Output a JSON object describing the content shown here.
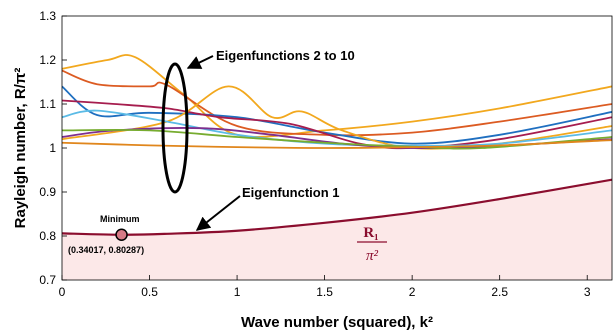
{
  "chart_data": {
    "type": "line",
    "xlabel": "Wave number (squared), k²",
    "ylabel": "Rayleigh number, R/π²",
    "xlim": [
      0,
      3.14159
    ],
    "ylim": [
      0.7,
      1.3
    ],
    "x_ticks": [
      0,
      0.5,
      1,
      1.5,
      2,
      2.5,
      3
    ],
    "y_ticks": [
      0.7,
      0.8,
      0.9,
      1,
      1.1,
      1.2,
      1.3
    ],
    "grid": false,
    "series": [
      {
        "name": "Eigenfunction 1",
        "color": "#8b0d2e",
        "x": [
          0,
          0.34017,
          0.6,
          1.0,
          1.5,
          2.0,
          2.5,
          3.14159
        ],
        "y": [
          0.806,
          0.80287,
          0.805,
          0.812,
          0.83,
          0.853,
          0.884,
          0.928
        ]
      },
      {
        "color": "#f2a81e",
        "x": [
          0,
          0.26,
          0.42,
          0.7,
          1.0,
          1.5,
          2.0,
          2.5,
          3.14159
        ],
        "y": [
          1.18,
          1.2,
          1.206,
          1.12,
          1.03,
          1.04,
          1.06,
          1.09,
          1.14
        ]
      },
      {
        "color": "#dc5b22",
        "x": [
          0,
          0.2,
          0.5,
          0.6,
          1.0,
          1.5,
          2.0,
          2.5,
          3.14159
        ],
        "y": [
          1.176,
          1.145,
          1.14,
          1.143,
          1.05,
          1.03,
          1.035,
          1.06,
          1.1
        ]
      },
      {
        "color": "#1f6fc0",
        "x": [
          0,
          0.2,
          0.5,
          1.0,
          1.5,
          2.0,
          2.5,
          3.14159
        ],
        "y": [
          1.14,
          1.075,
          1.08,
          1.07,
          1.035,
          1.01,
          1.03,
          1.082
        ]
      },
      {
        "color": "#a61d4e",
        "x": [
          0,
          0.3,
          0.6,
          0.9,
          1.3,
          1.7,
          2.0,
          2.5,
          3.14159
        ],
        "y": [
          1.108,
          1.1,
          1.09,
          1.07,
          1.055,
          1.01,
          1.0,
          1.02,
          1.07
        ]
      },
      {
        "color": "#f2a81e",
        "x": [
          0,
          0.6,
          0.95,
          1.2,
          1.37,
          1.6,
          2.0,
          2.5,
          3.14159
        ],
        "y": [
          1.02,
          1.06,
          1.14,
          1.07,
          1.083,
          1.04,
          1.0,
          1.01,
          1.05
        ]
      },
      {
        "color": "#5bbbe6",
        "x": [
          0,
          0.2,
          0.6,
          1.0,
          1.5,
          2.0,
          2.5,
          3.14159
        ],
        "y": [
          1.07,
          1.085,
          1.06,
          1.03,
          1.01,
          1.005,
          1.01,
          1.04
        ]
      },
      {
        "color": "#7e2f8e",
        "x": [
          0,
          0.3,
          0.8,
          1.2,
          1.6,
          2.0,
          2.5,
          3.14159
        ],
        "y": [
          1.025,
          1.04,
          1.045,
          1.03,
          1.01,
          1.0,
          1.005,
          1.02
        ]
      },
      {
        "color": "#77ac30",
        "x": [
          0,
          0.5,
          1.0,
          1.5,
          2.0,
          2.4,
          3.14159
        ],
        "y": [
          1.04,
          1.04,
          1.025,
          1.012,
          1.003,
          1.0,
          1.025
        ]
      },
      {
        "color": "#e0861c",
        "x": [
          0,
          0.5,
          1.0,
          1.5,
          2.0,
          2.5,
          3.14159
        ],
        "y": [
          1.012,
          1.006,
          1.002,
          1.0,
          1.002,
          1.006,
          1.018
        ]
      }
    ],
    "annotations": {
      "eig_2_10": "Eigenfunctions 2 to 10",
      "eig_1": "Eigenfunction 1",
      "minimum_label": "Minimum",
      "minimum_coords": "(0.34017, 0.80287)",
      "minimum_point": {
        "x": 0.34017,
        "y": 0.80287
      },
      "r1_numerator": "R₁",
      "r1_denominator": "π²"
    },
    "shade_color": "#fce8e8",
    "marker_color": "#d77a86"
  }
}
